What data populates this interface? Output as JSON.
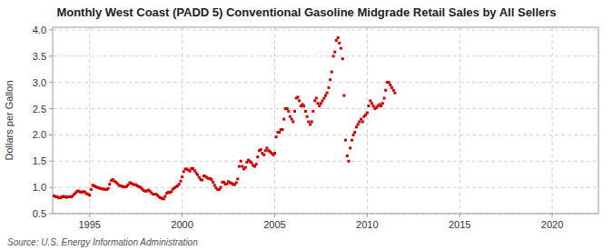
{
  "chart_data": {
    "type": "scatter",
    "title": "Monthly West Coast (PADD 5) Conventional Gasoline Midgrade Retail Sales by All Sellers",
    "y_label": "Dollars per Gallon",
    "annotations": [
      "Source: U.S. Energy Information Administration"
    ],
    "color": "#CC0000",
    "marker": "square",
    "grid": true,
    "xlim": [
      1993.0,
      2022.5
    ],
    "ylim": [
      0.5,
      4.05
    ],
    "xticks": [
      1995,
      2000,
      2005,
      2010,
      2015,
      2020
    ],
    "yticks": [
      0.5,
      {
        "value": 1.0,
        "label": "1.0"
      },
      1.5,
      {
        "value": 2.0,
        "label": "2.0"
      },
      2.5,
      {
        "value": 3.0,
        "label": "3.0"
      },
      3.5,
      {
        "value": 4.0,
        "label": "4.0"
      }
    ],
    "x": [
      1993.08,
      1993.17,
      1993.25,
      1993.33,
      1993.42,
      1993.5,
      1993.58,
      1993.67,
      1993.75,
      1993.83,
      1993.92,
      1994.0,
      1994.08,
      1994.17,
      1994.25,
      1994.33,
      1994.42,
      1994.5,
      1994.58,
      1994.67,
      1994.75,
      1994.83,
      1994.92,
      1995.0,
      1995.08,
      1995.17,
      1995.25,
      1995.33,
      1995.42,
      1995.5,
      1995.58,
      1995.67,
      1995.75,
      1995.83,
      1995.92,
      1996.0,
      1996.08,
      1996.17,
      1996.25,
      1996.33,
      1996.42,
      1996.5,
      1996.58,
      1996.67,
      1996.75,
      1996.83,
      1996.92,
      1997.0,
      1997.08,
      1997.17,
      1997.25,
      1997.33,
      1997.42,
      1997.5,
      1997.58,
      1997.67,
      1997.75,
      1997.83,
      1997.92,
      1998.0,
      1998.08,
      1998.17,
      1998.25,
      1998.33,
      1998.42,
      1998.5,
      1998.58,
      1998.67,
      1998.75,
      1998.83,
      1998.92,
      1999.0,
      1999.08,
      1999.17,
      1999.25,
      1999.33,
      1999.42,
      1999.5,
      1999.58,
      1999.67,
      1999.75,
      1999.83,
      1999.92,
      2000.0,
      2000.08,
      2000.17,
      2000.25,
      2000.33,
      2000.42,
      2000.5,
      2000.58,
      2000.67,
      2000.75,
      2000.83,
      2000.92,
      2001.0,
      2001.08,
      2001.17,
      2001.25,
      2001.33,
      2001.42,
      2001.5,
      2001.58,
      2001.67,
      2001.75,
      2001.83,
      2001.92,
      2002.0,
      2002.08,
      2002.17,
      2002.25,
      2002.33,
      2002.42,
      2002.5,
      2002.58,
      2002.67,
      2002.75,
      2002.83,
      2002.92,
      2003.0,
      2003.08,
      2003.17,
      2003.25,
      2003.33,
      2003.42,
      2003.5,
      2003.58,
      2003.67,
      2003.75,
      2003.83,
      2003.92,
      2004.0,
      2004.08,
      2004.17,
      2004.25,
      2004.33,
      2004.42,
      2004.5,
      2004.58,
      2004.67,
      2004.75,
      2004.83,
      2004.92,
      2005.0,
      2005.08,
      2005.17,
      2005.25,
      2005.33,
      2005.42,
      2005.5,
      2005.58,
      2005.67,
      2005.75,
      2005.83,
      2005.92,
      2006.0,
      2006.08,
      2006.17,
      2006.25,
      2006.33,
      2006.42,
      2006.5,
      2006.58,
      2006.67,
      2006.75,
      2006.83,
      2006.92,
      2007.0,
      2007.08,
      2007.17,
      2007.25,
      2007.33,
      2007.42,
      2007.5,
      2007.58,
      2007.67,
      2007.75,
      2007.83,
      2007.92,
      2008.0,
      2008.08,
      2008.17,
      2008.25,
      2008.33,
      2008.42,
      2008.5,
      2008.58,
      2008.67,
      2008.75,
      2008.83,
      2008.92,
      2009.0,
      2009.08,
      2009.17,
      2009.25,
      2009.33,
      2009.42,
      2009.5,
      2009.58,
      2009.67,
      2009.75,
      2009.83,
      2009.92,
      2010.0,
      2010.08,
      2010.17,
      2010.25,
      2010.33,
      2010.42,
      2010.5,
      2010.58,
      2010.67,
      2010.75,
      2010.83,
      2010.92,
      2011.0,
      2011.08,
      2011.17,
      2011.25,
      2011.33,
      2011.42,
      2011.5
    ],
    "values": [
      0.84,
      0.82,
      0.82,
      0.8,
      0.8,
      0.82,
      0.83,
      0.82,
      0.81,
      0.82,
      0.82,
      0.82,
      0.84,
      0.87,
      0.9,
      0.93,
      0.93,
      0.91,
      0.91,
      0.92,
      0.91,
      0.88,
      0.87,
      0.85,
      0.96,
      1.04,
      1.03,
      1.01,
      1.0,
      0.99,
      0.98,
      0.97,
      0.97,
      0.96,
      0.96,
      0.98,
      1.06,
      1.13,
      1.15,
      1.12,
      1.1,
      1.07,
      1.04,
      1.03,
      1.02,
      1.01,
      1.01,
      1.02,
      1.05,
      1.09,
      1.08,
      1.06,
      1.05,
      1.05,
      1.03,
      1.01,
      1.0,
      0.97,
      0.94,
      0.93,
      0.93,
      0.95,
      0.93,
      0.9,
      0.87,
      0.87,
      0.87,
      0.85,
      0.82,
      0.8,
      0.79,
      0.78,
      0.83,
      0.89,
      0.91,
      0.9,
      0.92,
      0.97,
      0.99,
      1.01,
      1.03,
      1.06,
      1.12,
      1.2,
      1.3,
      1.35,
      1.35,
      1.33,
      1.31,
      1.36,
      1.36,
      1.32,
      1.28,
      1.24,
      1.19,
      1.15,
      1.14,
      1.22,
      1.21,
      1.19,
      1.17,
      1.17,
      1.15,
      1.1,
      1.04,
      0.99,
      0.96,
      0.96,
      1.0,
      1.1,
      1.1,
      1.06,
      1.07,
      1.11,
      1.09,
      1.08,
      1.06,
      1.05,
      1.09,
      1.16,
      1.4,
      1.5,
      1.4,
      1.35,
      1.38,
      1.48,
      1.52,
      1.49,
      1.47,
      1.42,
      1.4,
      1.44,
      1.58,
      1.7,
      1.72,
      1.65,
      1.62,
      1.7,
      1.75,
      1.7,
      1.68,
      1.65,
      1.62,
      1.65,
      1.96,
      2.05,
      2.05,
      2.1,
      2.1,
      2.3,
      2.5,
      2.5,
      2.45,
      2.35,
      2.3,
      2.25,
      2.45,
      2.7,
      2.72,
      2.65,
      2.55,
      2.58,
      2.55,
      2.45,
      2.35,
      2.25,
      2.2,
      2.25,
      2.45,
      2.65,
      2.7,
      2.6,
      2.55,
      2.6,
      2.65,
      2.7,
      2.75,
      2.8,
      2.9,
      3.05,
      3.2,
      3.5,
      3.58,
      3.8,
      3.85,
      3.75,
      3.65,
      3.45,
      2.75,
      1.9,
      1.6,
      1.5,
      1.75,
      1.9,
      2.0,
      2.05,
      2.15,
      2.2,
      2.25,
      2.3,
      2.25,
      2.35,
      2.38,
      2.42,
      2.55,
      2.65,
      2.6,
      2.55,
      2.5,
      2.52,
      2.55,
      2.58,
      2.55,
      2.6,
      2.7,
      2.85,
      3.0,
      3.0,
      2.95,
      2.9,
      2.85,
      2.8
    ]
  }
}
